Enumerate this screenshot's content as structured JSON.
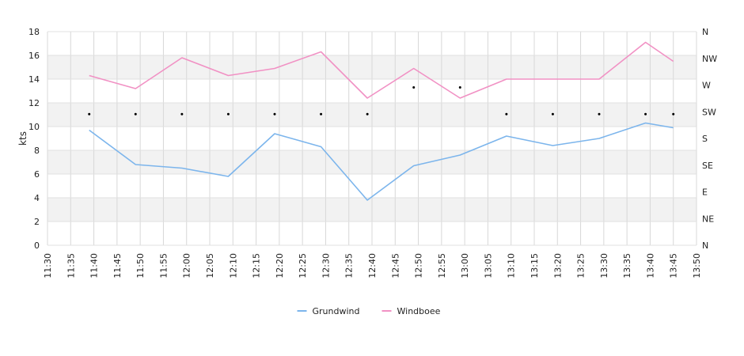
{
  "chart_data": {
    "type": "line",
    "title": "",
    "ylabel": "kts",
    "ylim": [
      0,
      18
    ],
    "y_ticks": [
      "0",
      "2",
      "4",
      "6",
      "8",
      "10",
      "12",
      "14",
      "16",
      "18"
    ],
    "x_ticks": [
      "11:30",
      "11:35",
      "11:40",
      "11:45",
      "11:50",
      "11:55",
      "12:00",
      "12:05",
      "12:10",
      "12:15",
      "12:20",
      "12:25",
      "12:30",
      "12:35",
      "12:40",
      "12:45",
      "12:50",
      "12:55",
      "13:00",
      "13:05",
      "13:10",
      "13:15",
      "13:20",
      "13:25",
      "13:30",
      "13:35",
      "13:40",
      "13:45",
      "13:50"
    ],
    "xlim": [
      "11:30",
      "13:50"
    ],
    "direction_axis_labels": [
      "N",
      "NE",
      "E",
      "SE",
      "S",
      "SW",
      "W",
      "NW",
      "N"
    ],
    "x": [
      "11:39",
      "11:49",
      "11:59",
      "12:09",
      "12:19",
      "12:29",
      "12:39",
      "12:49",
      "12:59",
      "13:09",
      "13:19",
      "13:29",
      "13:39",
      "13:45"
    ],
    "series": [
      {
        "name": "Grundwind",
        "color": "#7cb5ec",
        "values": [
          9.7,
          6.8,
          6.5,
          5.8,
          9.4,
          8.3,
          3.8,
          6.7,
          7.6,
          9.2,
          8.4,
          9.0,
          10.3,
          9.9
        ]
      },
      {
        "name": "Windboee",
        "color": "#f191c4",
        "values": [
          14.3,
          13.2,
          15.8,
          14.3,
          14.9,
          16.3,
          12.4,
          14.9,
          12.4,
          14.0,
          14.0,
          14.0,
          17.1,
          15.5
        ]
      }
    ],
    "direction_points": {
      "x": [
        "11:39",
        "11:49",
        "11:59",
        "12:09",
        "12:19",
        "12:29",
        "12:39",
        "12:49",
        "12:59",
        "13:09",
        "13:19",
        "13:29",
        "13:39",
        "13:45"
      ],
      "values": [
        "SW",
        "SW",
        "SW",
        "SW",
        "SW",
        "SW",
        "SW",
        "W",
        "W",
        "SW",
        "SW",
        "SW",
        "SW",
        "SW"
      ]
    },
    "grid": true,
    "legend_position": "bottom-center"
  }
}
